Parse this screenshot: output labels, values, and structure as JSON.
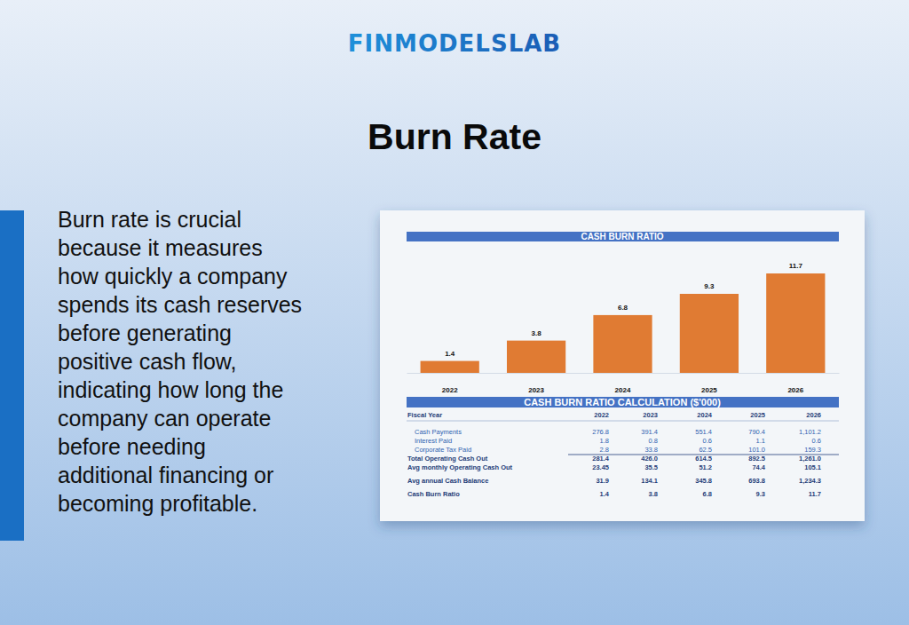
{
  "brand": "FINMODELSLAB",
  "heading": "Burn Rate",
  "body": [
    "Burn rate is crucial",
    "because it measures",
    "how quickly a company",
    "spends its cash reserves",
    "before generating",
    "positive cash flow,",
    "indicating how long the",
    "company can operate",
    "before needing",
    "additional financing or",
    "becoming profitable."
  ],
  "chart_data": {
    "type": "bar",
    "title": "CASH BURN RATIO",
    "categories": [
      "2022",
      "2023",
      "2024",
      "2025",
      "2026"
    ],
    "values": [
      1.4,
      3.8,
      6.8,
      9.3,
      11.7
    ],
    "color": "#e07b33",
    "ylim": [
      0,
      14
    ],
    "tick_labels": "x",
    "data_labels": true
  },
  "table": {
    "title": "CASH BURN RATIO CALCULATION ($'000)",
    "header": [
      "Fiscal Year",
      "2022",
      "2023",
      "2024",
      "2025",
      "2026"
    ],
    "rows": [
      [
        "Cash Payments",
        "276.8",
        "391.4",
        "551.4",
        "790.4",
        "1,101.2"
      ],
      [
        "Interest Paid",
        "1.8",
        "0.8",
        "0.6",
        "1.1",
        "0.6"
      ],
      [
        "Corporate Tax Paid",
        "2.8",
        "33.8",
        "62.5",
        "101.0",
        "159.3"
      ],
      [
        "Total Operating Cash Out",
        "281.4",
        "426.0",
        "614.5",
        "892.5",
        "1,261.0"
      ],
      [
        "Avg monthly Operating Cash Out",
        "23.45",
        "35.5",
        "51.2",
        "74.4",
        "105.1"
      ],
      [
        "Avg annual Cash Balance",
        "31.9",
        "134.1",
        "345.8",
        "693.8",
        "1,234.3"
      ],
      [
        "Cash Burn Ratio",
        "1.4",
        "3.8",
        "6.8",
        "9.3",
        "11.7"
      ]
    ]
  }
}
